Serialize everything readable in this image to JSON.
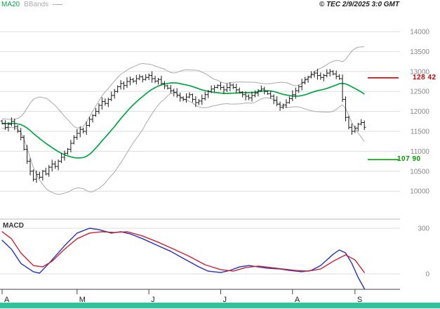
{
  "header": {
    "legend_ma20": "MA20",
    "legend_bbands": "BBands",
    "copyright": "© TEC 2/9/2025 3:0 GMT"
  },
  "labels": {
    "macd": "MACD"
  },
  "colors": {
    "candle": "#1a1a1a",
    "ma20": "#00a843",
    "bbands": "#aaaaaa",
    "grid": "#dddddd",
    "separator": "#bbbbbb",
    "axis": "#444444",
    "axis_label": "#888888",
    "month_label": "#222222",
    "macd_line": "#2233bb",
    "macd_signal": "#cc2233",
    "level_red": "#cc0000",
    "level_green": "#009900",
    "scrollbar": "#2fc39b"
  },
  "chart_data": {
    "type": "candlestick+line",
    "price_panel": {
      "y_ticks": [
        14000,
        13500,
        13000,
        12500,
        12000,
        11500,
        11000,
        10500,
        10000
      ],
      "y_range": [
        10000,
        14000
      ],
      "months": [
        {
          "label": "A",
          "bar": 0
        },
        {
          "label": "M",
          "bar": 24
        },
        {
          "label": "J",
          "bar": 47
        },
        {
          "label": "J",
          "bar": 70
        },
        {
          "label": "A",
          "bar": 93
        },
        {
          "label": "S",
          "bar": 113
        }
      ],
      "overlays": {
        "ma_period": 20,
        "bollinger_stddev": 2
      },
      "levels": [
        {
          "name": "resistance",
          "label": "128 42",
          "price": 12842
        },
        {
          "name": "support",
          "label": "107 90",
          "price": 10790
        }
      ],
      "history_closes": [
        11500,
        11620,
        11560,
        11700,
        11640,
        11750,
        11700,
        11800,
        11740,
        11700,
        11780,
        11720,
        11650,
        11700,
        11600,
        11680,
        11740,
        11660,
        11720,
        11690
      ],
      "closes": [
        11700,
        11600,
        11680,
        11750,
        11620,
        11500,
        11350,
        11050,
        10750,
        10500,
        10300,
        10420,
        10350,
        10500,
        10430,
        10600,
        10680,
        10620,
        10750,
        10850,
        10950,
        11050,
        11200,
        11350,
        11450,
        11550,
        11500,
        11650,
        11800,
        11900,
        12000,
        12150,
        12250,
        12200,
        12300,
        12400,
        12500,
        12620,
        12700,
        12650,
        12750,
        12800,
        12760,
        12820,
        12870,
        12800,
        12850,
        12900,
        12820,
        12760,
        12800,
        12700,
        12640,
        12580,
        12520,
        12480,
        12400,
        12340,
        12300,
        12360,
        12420,
        12300,
        12220,
        12260,
        12320,
        12420,
        12500,
        12560,
        12600,
        12650,
        12600,
        12540,
        12600,
        12660,
        12600,
        12540,
        12480,
        12420,
        12380,
        12340,
        12400,
        12460,
        12520,
        12560,
        12500,
        12440,
        12380,
        12280,
        12180,
        12100,
        12160,
        12220,
        12320,
        12420,
        12520,
        12620,
        12720,
        12800,
        12860,
        12920,
        12960,
        12900,
        12850,
        12900,
        12960,
        13000,
        12940,
        12880,
        12820,
        12300,
        11850,
        11600,
        11500,
        11580,
        11680,
        11720,
        11600
      ]
    },
    "macd_panel": {
      "y_ticks": [
        {
          "label": "300",
          "value": 300
        },
        {
          "label": "0",
          "value": 0
        }
      ],
      "series": [
        {
          "name": "macd",
          "color_key": "macd_line",
          "points": [
            [
              0,
              221
            ],
            [
              3,
              162
            ],
            [
              6,
              69
            ],
            [
              10,
              14
            ],
            [
              12,
              5
            ],
            [
              15,
              69
            ],
            [
              20,
              185
            ],
            [
              24,
              268
            ],
            [
              28,
              300
            ],
            [
              31,
              291
            ],
            [
              35,
              268
            ],
            [
              38,
              277
            ],
            [
              41,
              263
            ],
            [
              45,
              231
            ],
            [
              49,
              194
            ],
            [
              54,
              148
            ],
            [
              58,
              102
            ],
            [
              63,
              46
            ],
            [
              66,
              18
            ],
            [
              70,
              9
            ],
            [
              73,
              23
            ],
            [
              76,
              46
            ],
            [
              79,
              55
            ],
            [
              82,
              46
            ],
            [
              85,
              37
            ],
            [
              89,
              32
            ],
            [
              92,
              23
            ],
            [
              96,
              14
            ],
            [
              99,
              23
            ],
            [
              102,
              55
            ],
            [
              106,
              129
            ],
            [
              108,
              157
            ],
            [
              110,
              138
            ],
            [
              112,
              69
            ],
            [
              114,
              -23
            ],
            [
              116,
              -97
            ]
          ]
        },
        {
          "name": "signal",
          "color_key": "macd_signal",
          "points": [
            [
              0,
              277
            ],
            [
              3,
              231
            ],
            [
              6,
              138
            ],
            [
              10,
              55
            ],
            [
              13,
              46
            ],
            [
              16,
              83
            ],
            [
              20,
              162
            ],
            [
              24,
              231
            ],
            [
              28,
              268
            ],
            [
              32,
              277
            ],
            [
              36,
              272
            ],
            [
              40,
              277
            ],
            [
              45,
              249
            ],
            [
              50,
              208
            ],
            [
              55,
              162
            ],
            [
              60,
              115
            ],
            [
              65,
              60
            ],
            [
              70,
              28
            ],
            [
              74,
              18
            ],
            [
              78,
              42
            ],
            [
              82,
              51
            ],
            [
              86,
              42
            ],
            [
              90,
              32
            ],
            [
              94,
              23
            ],
            [
              98,
              18
            ],
            [
              102,
              32
            ],
            [
              106,
              83
            ],
            [
              110,
              125
            ],
            [
              113,
              92
            ],
            [
              116,
              9
            ]
          ]
        }
      ]
    }
  }
}
